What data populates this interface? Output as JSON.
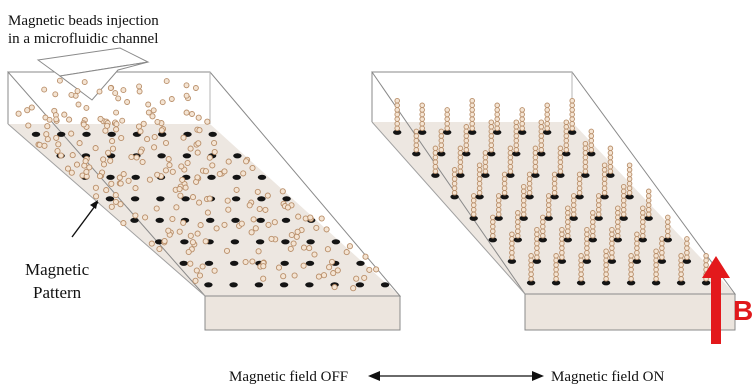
{
  "header": {
    "line1": "Magnetic beads injection",
    "line2": "in a microfluidic channel"
  },
  "left_panel": {
    "pattern_label_1": "Magnetic",
    "pattern_label_2": "Pattern"
  },
  "right_panel": {
    "field_symbol": "B"
  },
  "footer": {
    "field_off_label": "Magnetic field OFF",
    "field_on_label": "Magnetic field ON"
  },
  "colors": {
    "floor": "#ede7e1",
    "wall_line": "#8a8a8a",
    "bead_fill": "#f4e4d3",
    "bead_stroke": "#b98f6a",
    "pattern_spot": "#141414",
    "field_arrow": "#e3191c"
  }
}
